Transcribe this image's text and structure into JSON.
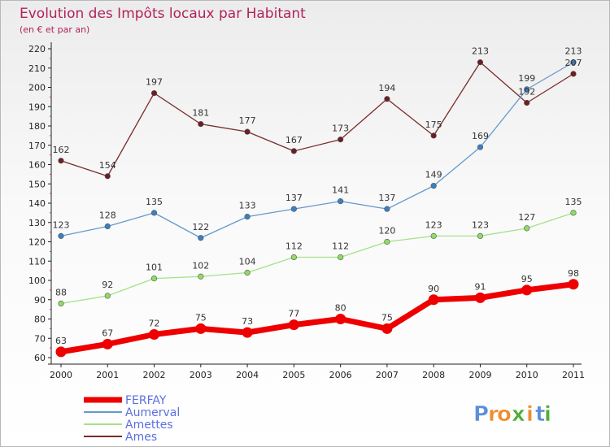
{
  "chart_data": {
    "type": "line",
    "title": "Evolution des Impôts locaux par Habitant",
    "subtitle": "(en € et par an)",
    "x": [
      "2000",
      "2001",
      "2002",
      "2003",
      "2004",
      "2005",
      "2006",
      "2007",
      "2008",
      "2009",
      "2010",
      "2011"
    ],
    "ylim": [
      60,
      220
    ],
    "yticks": [
      60,
      70,
      80,
      90,
      100,
      110,
      120,
      130,
      140,
      150,
      160,
      170,
      180,
      190,
      200,
      210,
      220
    ],
    "grid": false,
    "legend_position": "bottom-left",
    "series": [
      {
        "name": "FERFAY",
        "values": [
          63,
          67,
          72,
          75,
          73,
          77,
          80,
          75,
          90,
          91,
          95,
          98
        ],
        "color": "#ee0000",
        "marker_color": "#ee0000"
      },
      {
        "name": "Aumerval",
        "values": [
          123,
          128,
          135,
          122,
          133,
          137,
          141,
          137,
          149,
          169,
          199,
          213
        ],
        "color": "#6699cc",
        "marker_color": "#3d7fc2"
      },
      {
        "name": "Amettes",
        "values": [
          88,
          92,
          101,
          102,
          104,
          112,
          112,
          120,
          123,
          123,
          127,
          135
        ],
        "color": "#a6e08a",
        "marker_color": "#8fdc62"
      },
      {
        "name": "Ames",
        "values": [
          162,
          154,
          197,
          181,
          177,
          167,
          173,
          194,
          175,
          213,
          192,
          207
        ],
        "color": "#7a2b2b",
        "marker_color": "#6b1e24"
      }
    ]
  },
  "brand": {
    "text": "Proxiti",
    "letters": [
      "P",
      "r",
      "o",
      "x",
      "i",
      "t",
      "i"
    ],
    "colors": [
      "#5b8fd6",
      "#f08c2e",
      "#f08c2e",
      "#4fae38",
      "#f08c2e",
      "#5b8fd6",
      "#4fae38"
    ]
  },
  "colors": {
    "axis": "#222222",
    "title": "#b2225a",
    "legend_text": "#5b6fe0"
  }
}
